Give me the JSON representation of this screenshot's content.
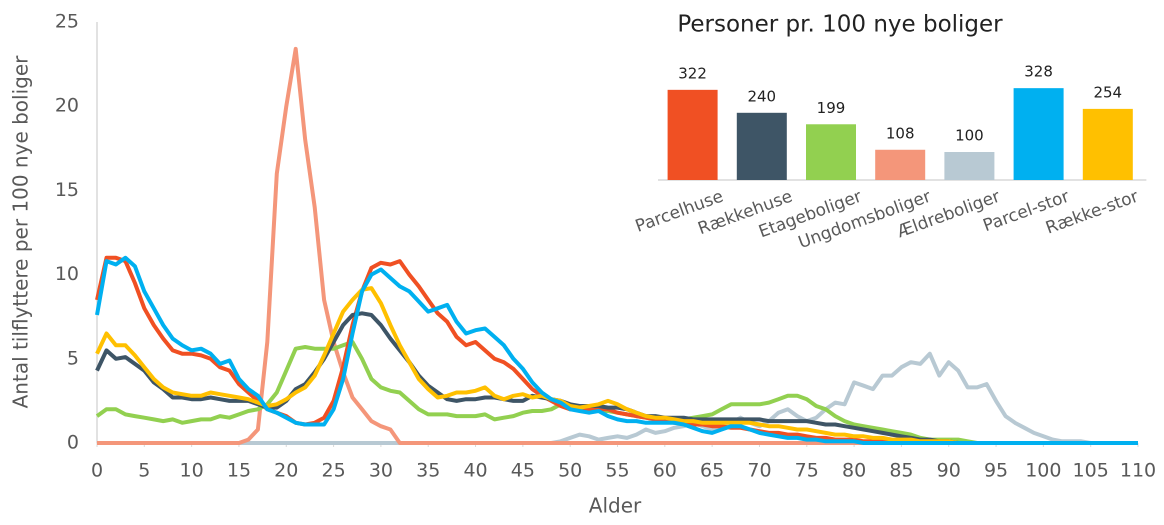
{
  "chart_data": [
    {
      "type": "line",
      "x_label": "Alder",
      "y_label": "Antal tilflyttere per 100 nye boliger",
      "x": [
        0,
        1,
        2,
        3,
        4,
        5,
        6,
        7,
        8,
        9,
        10,
        11,
        12,
        13,
        14,
        15,
        16,
        17,
        18,
        19,
        20,
        21,
        22,
        23,
        24,
        25,
        26,
        27,
        28,
        29,
        30,
        31,
        32,
        33,
        34,
        35,
        36,
        37,
        38,
        39,
        40,
        41,
        42,
        43,
        44,
        45,
        46,
        47,
        48,
        49,
        50,
        51,
        52,
        53,
        54,
        55,
        56,
        57,
        58,
        59,
        60,
        61,
        62,
        63,
        64,
        65,
        66,
        67,
        68,
        69,
        70,
        71,
        72,
        73,
        74,
        75,
        76,
        77,
        78,
        79,
        80,
        81,
        82,
        83,
        84,
        85,
        86,
        87,
        88,
        89,
        90,
        91,
        92,
        93,
        94,
        95,
        96,
        97,
        98,
        99,
        100,
        101,
        102,
        103,
        104,
        105,
        106,
        107,
        108,
        109,
        110
      ],
      "xlim": [
        0,
        110
      ],
      "xticks": [
        0,
        5,
        10,
        15,
        20,
        25,
        30,
        35,
        40,
        45,
        50,
        55,
        60,
        65,
        70,
        75,
        80,
        85,
        90,
        95,
        100,
        105,
        110
      ],
      "ylim": [
        0,
        25
      ],
      "yticks": [
        0,
        5,
        10,
        15,
        20,
        25
      ],
      "grid": false,
      "series": [
        {
          "name": "Parcelhuse",
          "color": "#f05023",
          "values": [
            8.5,
            11,
            11,
            10.8,
            9.5,
            8,
            7,
            6.2,
            5.5,
            5.3,
            5.3,
            5.2,
            5,
            4.5,
            4.3,
            3.5,
            3,
            2.5,
            2,
            1.8,
            1.6,
            1.2,
            1.1,
            1.2,
            1.5,
            2.5,
            4.5,
            7,
            9,
            10.4,
            10.7,
            10.6,
            10.8,
            10,
            9.3,
            8.5,
            7.7,
            7.2,
            6.3,
            5.8,
            6,
            5.5,
            5,
            4.8,
            4.4,
            3.8,
            3.2,
            2.8,
            2.5,
            2.2,
            2,
            2,
            2,
            2,
            2,
            1.8,
            1.7,
            1.6,
            1.5,
            1.4,
            1.3,
            1.2,
            1.2,
            1.1,
            1.1,
            1,
            1,
            0.9,
            0.9,
            0.8,
            0.7,
            0.6,
            0.6,
            0.5,
            0.5,
            0.4,
            0.3,
            0.3,
            0.2,
            0.2,
            0.2,
            0.1,
            0.1,
            0.1,
            0.1,
            0,
            0,
            0,
            0,
            0,
            0,
            0,
            0,
            0,
            0,
            0,
            0,
            0,
            0,
            0,
            0,
            0,
            0,
            0,
            0,
            0,
            0,
            0,
            0,
            0,
            0
          ]
        },
        {
          "name": "Rækkehuse",
          "color": "#3e5566",
          "values": [
            4.3,
            5.5,
            5,
            5.1,
            4.7,
            4.3,
            3.6,
            3.2,
            2.7,
            2.7,
            2.6,
            2.6,
            2.7,
            2.6,
            2.5,
            2.5,
            2.5,
            2.3,
            2.1,
            2.1,
            2.5,
            3.2,
            3.5,
            4.2,
            5,
            6,
            7,
            7.6,
            7.7,
            7.6,
            7,
            6.2,
            5.5,
            4.8,
            4,
            3.4,
            3,
            2.6,
            2.5,
            2.6,
            2.6,
            2.7,
            2.7,
            2.6,
            2.5,
            2.5,
            2.8,
            2.7,
            2.6,
            2.5,
            2.3,
            2.2,
            2.2,
            2.2,
            2.1,
            2.1,
            2,
            1.8,
            1.6,
            1.6,
            1.5,
            1.5,
            1.5,
            1.4,
            1.4,
            1.4,
            1.4,
            1.4,
            1.4,
            1.4,
            1.4,
            1.3,
            1.3,
            1.3,
            1.3,
            1.3,
            1.2,
            1.1,
            1.1,
            1,
            0.9,
            0.8,
            0.7,
            0.6,
            0.5,
            0.4,
            0.3,
            0.2,
            0.2,
            0.1,
            0.1,
            0,
            0,
            0,
            0,
            0,
            0,
            0,
            0,
            0,
            0,
            0,
            0,
            0,
            0,
            0,
            0,
            0,
            0,
            0,
            0
          ]
        },
        {
          "name": "Etageboliger",
          "color": "#92d050",
          "values": [
            1.6,
            2,
            2,
            1.7,
            1.6,
            1.5,
            1.4,
            1.3,
            1.4,
            1.2,
            1.3,
            1.4,
            1.4,
            1.6,
            1.5,
            1.7,
            1.9,
            2,
            2.3,
            3,
            4.3,
            5.6,
            5.7,
            5.6,
            5.6,
            5.6,
            5.8,
            6,
            5,
            3.8,
            3.3,
            3.1,
            3,
            2.5,
            2,
            1.7,
            1.7,
            1.7,
            1.6,
            1.6,
            1.6,
            1.7,
            1.4,
            1.5,
            1.6,
            1.8,
            1.9,
            1.9,
            2,
            2.3,
            2.2,
            2.1,
            2,
            1.9,
            1.9,
            1.8,
            1.7,
            1.6,
            1.5,
            1.4,
            1.3,
            1.3,
            1.4,
            1.5,
            1.6,
            1.7,
            2,
            2.3,
            2.3,
            2.3,
            2.3,
            2.4,
            2.6,
            2.8,
            2.8,
            2.6,
            2.2,
            2,
            1.6,
            1.3,
            1.1,
            1,
            0.9,
            0.8,
            0.7,
            0.6,
            0.5,
            0.3,
            0.2,
            0.2,
            0.2,
            0.2,
            0.1,
            0,
            0,
            0,
            0,
            0,
            0,
            0,
            0,
            0,
            0,
            0,
            0,
            0,
            0,
            0,
            0,
            0,
            0
          ]
        },
        {
          "name": "Ungdomsboliger",
          "color": "#f4967a",
          "values": [
            0,
            0,
            0,
            0,
            0,
            0,
            0,
            0,
            0,
            0,
            0,
            0,
            0,
            0,
            0,
            0,
            0.2,
            0.8,
            6,
            16,
            20,
            23.4,
            18,
            14,
            8.5,
            6,
            4.2,
            2.7,
            2,
            1.3,
            1,
            0.8,
            0,
            0,
            0,
            0,
            0,
            0,
            0,
            0,
            0,
            0,
            0,
            0,
            0,
            0,
            0,
            0,
            0,
            0,
            0,
            0,
            0,
            0,
            0,
            0,
            0,
            0,
            0,
            0,
            0,
            0,
            0,
            0,
            0,
            0,
            0,
            0,
            0,
            0,
            0,
            0,
            0,
            0,
            0,
            0,
            0,
            0,
            0,
            0,
            0,
            0,
            0,
            0,
            0,
            0,
            0,
            0,
            0,
            0,
            0,
            0,
            0,
            0,
            0,
            0,
            0,
            0,
            0,
            0,
            0,
            0,
            0,
            0,
            0,
            0,
            0,
            0,
            0,
            0,
            0
          ]
        },
        {
          "name": "Ældreboliger",
          "color": "#b8c9d3",
          "values": [
            0,
            0,
            0,
            0,
            0,
            0,
            0,
            0,
            0,
            0,
            0,
            0,
            0,
            0,
            0,
            0,
            0,
            0,
            0,
            0,
            0,
            0,
            0,
            0,
            0,
            0,
            0,
            0,
            0,
            0,
            0,
            0,
            0,
            0,
            0,
            0,
            0,
            0,
            0,
            0,
            0,
            0,
            0,
            0,
            0,
            0,
            0,
            0,
            0,
            0.1,
            0.3,
            0.5,
            0.4,
            0.2,
            0.3,
            0.4,
            0.3,
            0.5,
            0.8,
            0.6,
            0.7,
            0.9,
            1,
            1.2,
            1,
            0.8,
            0.9,
            1.2,
            1.5,
            1.2,
            1,
            1.3,
            1.8,
            2,
            1.6,
            1.3,
            1.5,
            2,
            2.4,
            2.3,
            3.6,
            3.4,
            3.2,
            4,
            4,
            4.5,
            4.8,
            4.7,
            5.3,
            4,
            4.8,
            4.3,
            3.3,
            3.3,
            3.5,
            2.5,
            1.6,
            1.2,
            0.9,
            0.6,
            0.4,
            0.2,
            0.1,
            0.1,
            0.1,
            0,
            0,
            0,
            0,
            0,
            0
          ]
        },
        {
          "name": "Parcel-stor",
          "color": "#00b0f0",
          "values": [
            7.6,
            10.8,
            10.6,
            11,
            10.5,
            9,
            8,
            7,
            6.2,
            5.8,
            5.5,
            5.6,
            5.3,
            4.7,
            4.9,
            3.8,
            3.2,
            2.8,
            2,
            1.8,
            1.5,
            1.2,
            1.1,
            1.1,
            1.1,
            2,
            3.8,
            6.5,
            9,
            10,
            10.3,
            9.8,
            9.3,
            9,
            8.4,
            7.8,
            8,
            8.2,
            7.2,
            6.5,
            6.7,
            6.8,
            6.3,
            5.8,
            5,
            4.4,
            3.6,
            3,
            2.6,
            2.4,
            2,
            1.9,
            1.8,
            1.9,
            1.6,
            1.4,
            1.3,
            1.3,
            1.2,
            1.2,
            1.2,
            1.2,
            1.1,
            0.9,
            0.7,
            0.6,
            0.8,
            1,
            1,
            0.8,
            0.6,
            0.5,
            0.4,
            0.3,
            0.3,
            0.2,
            0.2,
            0.1,
            0.1,
            0.1,
            0.1,
            0,
            0,
            0,
            0,
            0,
            0,
            0,
            0,
            0,
            0,
            0,
            0,
            0,
            0,
            0,
            0,
            0,
            0,
            0,
            0,
            0,
            0,
            0,
            0,
            0,
            0,
            0,
            0,
            0,
            0
          ]
        },
        {
          "name": "Række-stor",
          "color": "#ffc000",
          "values": [
            5.3,
            6.5,
            5.8,
            5.8,
            5.2,
            4.5,
            3.8,
            3.3,
            3,
            2.9,
            2.8,
            2.8,
            3,
            2.9,
            2.8,
            2.7,
            2.6,
            2.4,
            2.2,
            2.3,
            2.6,
            3,
            3.3,
            4,
            5.2,
            6.5,
            7.8,
            8.5,
            9.1,
            9.2,
            8.3,
            7,
            5.8,
            4.8,
            3.8,
            3.2,
            2.7,
            2.8,
            3,
            3,
            3.1,
            3.3,
            2.8,
            2.6,
            2.8,
            2.9,
            2.7,
            2.8,
            2.6,
            2.5,
            2.2,
            2.1,
            2.2,
            2.3,
            2.5,
            2.3,
            2,
            1.8,
            1.6,
            1.5,
            1.5,
            1.4,
            1.3,
            1.3,
            1.2,
            1.2,
            1.2,
            1.2,
            1.2,
            1.2,
            1.1,
            1,
            1,
            0.9,
            0.8,
            0.8,
            0.7,
            0.6,
            0.5,
            0.5,
            0.4,
            0.4,
            0.3,
            0.3,
            0.2,
            0.2,
            0.2,
            0.1,
            0.1,
            0.1,
            0.1,
            0,
            0,
            0,
            0,
            0,
            0,
            0,
            0,
            0,
            0,
            0,
            0,
            0,
            0,
            0,
            0,
            0,
            0,
            0,
            0
          ]
        }
      ]
    },
    {
      "type": "bar",
      "title": "Personer pr. 100 nye boliger",
      "values": [
        322,
        240,
        199,
        108,
        100,
        328,
        254
      ],
      "ylim": [
        0,
        350
      ]
    }
  ]
}
